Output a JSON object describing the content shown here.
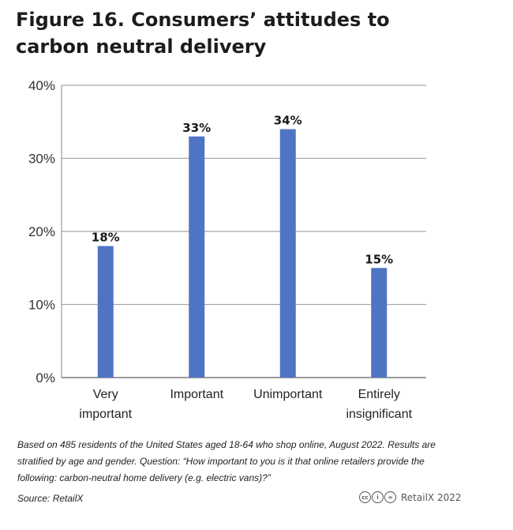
{
  "title": "Figure 16. Consumers’ attitudes to carbon neutral delivery",
  "chart_data": {
    "type": "bar",
    "title": "Figure 16. Consumers’ attitudes to carbon neutral delivery",
    "categories": [
      [
        "Very",
        "important"
      ],
      [
        "Important"
      ],
      [
        "Unimportant"
      ],
      [
        "Entirely",
        "insignificant"
      ]
    ],
    "values": [
      18,
      33,
      34,
      15
    ],
    "value_labels": [
      "18%",
      "33%",
      "34%",
      "15%"
    ],
    "yticks": [
      "0%",
      "10%",
      "20%",
      "30%",
      "40%"
    ],
    "ylim": [
      0,
      40
    ],
    "xlabel": "",
    "ylabel": "",
    "grid": true,
    "bar_color": "#4f74c4"
  },
  "note": "Based on 485 residents of the United States aged 18-64 who shop online, August 2022. Results are stratified by age and gender. Question: “How important to you is it that online retailers provide the following: carbon-neutral home delivery (e.g. electric vans)?”",
  "source": "Source: RetailX",
  "credit": "RetailX 2022",
  "license_icons": [
    "cc-icon",
    "by-icon",
    "nd-icon"
  ]
}
